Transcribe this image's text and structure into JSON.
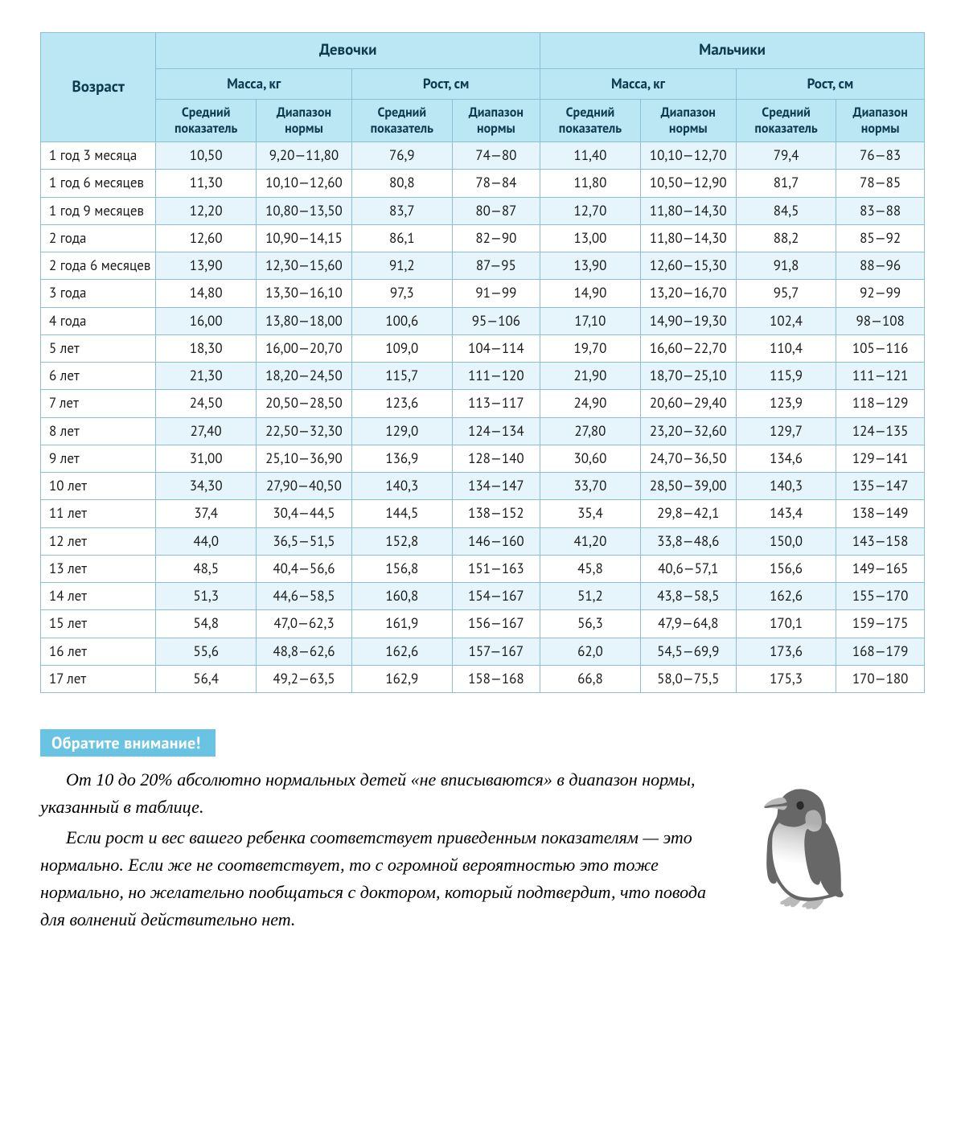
{
  "table": {
    "header": {
      "age": "Возраст",
      "girls": "Девочки",
      "boys": "Мальчики",
      "mass": "Масса, кг",
      "height": "Рост, см",
      "mean": "Средний показатель",
      "range": "Диапазон нормы"
    },
    "rows": [
      {
        "age": "1 год 3 месяца",
        "g_ma": "10,50",
        "g_mr": "9,20—11,80",
        "g_ha": "76,9",
        "g_hr": "74—80",
        "b_ma": "11,40",
        "b_mr": "10,10—12,70",
        "b_ha": "79,4",
        "b_hr": "76—83"
      },
      {
        "age": "1 год 6 месяцев",
        "g_ma": "11,30",
        "g_mr": "10,10—12,60",
        "g_ha": "80,8",
        "g_hr": "78—84",
        "b_ma": "11,80",
        "b_mr": "10,50—12,90",
        "b_ha": "81,7",
        "b_hr": "78—85"
      },
      {
        "age": "1 год 9 месяцев",
        "g_ma": "12,20",
        "g_mr": "10,80—13,50",
        "g_ha": "83,7",
        "g_hr": "80—87",
        "b_ma": "12,70",
        "b_mr": "11,80—14,30",
        "b_ha": "84,5",
        "b_hr": "83—88"
      },
      {
        "age": "2 года",
        "g_ma": "12,60",
        "g_mr": "10,90—14,15",
        "g_ha": "86,1",
        "g_hr": "82—90",
        "b_ma": "13,00",
        "b_mr": "11,80—14,30",
        "b_ha": "88,2",
        "b_hr": "85—92"
      },
      {
        "age": "2 года 6 месяцев",
        "g_ma": "13,90",
        "g_mr": "12,30—15,60",
        "g_ha": "91,2",
        "g_hr": "87—95",
        "b_ma": "13,90",
        "b_mr": "12,60—15,30",
        "b_ha": "91,8",
        "b_hr": "88—96"
      },
      {
        "age": "3 года",
        "g_ma": "14,80",
        "g_mr": "13,30—16,10",
        "g_ha": "97,3",
        "g_hr": "91—99",
        "b_ma": "14,90",
        "b_mr": "13,20—16,70",
        "b_ha": "95,7",
        "b_hr": "92—99"
      },
      {
        "age": "4 года",
        "g_ma": "16,00",
        "g_mr": "13,80—18,00",
        "g_ha": "100,6",
        "g_hr": "95—106",
        "b_ma": "17,10",
        "b_mr": "14,90—19,30",
        "b_ha": "102,4",
        "b_hr": "98—108"
      },
      {
        "age": "5 лет",
        "g_ma": "18,30",
        "g_mr": "16,00—20,70",
        "g_ha": "109,0",
        "g_hr": "104—114",
        "b_ma": "19,70",
        "b_mr": "16,60—22,70",
        "b_ha": "110,4",
        "b_hr": "105—116"
      },
      {
        "age": "6 лет",
        "g_ma": "21,30",
        "g_mr": "18,20—24,50",
        "g_ha": "115,7",
        "g_hr": "111—120",
        "b_ma": "21,90",
        "b_mr": "18,70—25,10",
        "b_ha": "115,9",
        "b_hr": "111—121"
      },
      {
        "age": "7 лет",
        "g_ma": "24,50",
        "g_mr": "20,50—28,50",
        "g_ha": "123,6",
        "g_hr": "113—117",
        "b_ma": "24,90",
        "b_mr": "20,60—29,40",
        "b_ha": "123,9",
        "b_hr": "118—129"
      },
      {
        "age": "8 лет",
        "g_ma": "27,40",
        "g_mr": "22,50—32,30",
        "g_ha": "129,0",
        "g_hr": "124—134",
        "b_ma": "27,80",
        "b_mr": "23,20—32,60",
        "b_ha": "129,7",
        "b_hr": "124—135"
      },
      {
        "age": "9 лет",
        "g_ma": "31,00",
        "g_mr": "25,10—36,90",
        "g_ha": "136,9",
        "g_hr": "128—140",
        "b_ma": "30,60",
        "b_mr": "24,70—36,50",
        "b_ha": "134,6",
        "b_hr": "129—141"
      },
      {
        "age": "10 лет",
        "g_ma": "34,30",
        "g_mr": "27,90—40,50",
        "g_ha": "140,3",
        "g_hr": "134—147",
        "b_ma": "33,70",
        "b_mr": "28,50—39,00",
        "b_ha": "140,3",
        "b_hr": "135—147"
      },
      {
        "age": "11 лет",
        "g_ma": "37,4",
        "g_mr": "30,4—44,5",
        "g_ha": "144,5",
        "g_hr": "138—152",
        "b_ma": "35,4",
        "b_mr": "29,8—42,1",
        "b_ha": "143,4",
        "b_hr": "138—149"
      },
      {
        "age": "12 лет",
        "g_ma": "44,0",
        "g_mr": "36,5—51,5",
        "g_ha": "152,8",
        "g_hr": "146—160",
        "b_ma": "41,20",
        "b_mr": "33,8—48,6",
        "b_ha": "150,0",
        "b_hr": "143—158"
      },
      {
        "age": "13 лет",
        "g_ma": "48,5",
        "g_mr": "40,4—56,6",
        "g_ha": "156,8",
        "g_hr": "151—163",
        "b_ma": "45,8",
        "b_mr": "40,6—57,1",
        "b_ha": "156,6",
        "b_hr": "149—165"
      },
      {
        "age": "14 лет",
        "g_ma": "51,3",
        "g_mr": "44,6—58,5",
        "g_ha": "160,8",
        "g_hr": "154—167",
        "b_ma": "51,2",
        "b_mr": "43,8—58,5",
        "b_ha": "162,6",
        "b_hr": "155—170"
      },
      {
        "age": "15 лет",
        "g_ma": "54,8",
        "g_mr": "47,0—62,3",
        "g_ha": "161,9",
        "g_hr": "156—167",
        "b_ma": "56,3",
        "b_mr": "47,9—64,8",
        "b_ha": "170,1",
        "b_hr": "159—175"
      },
      {
        "age": "16 лет",
        "g_ma": "55,6",
        "g_mr": "48,8—62,6",
        "g_ha": "162,6",
        "g_hr": "157—167",
        "b_ma": "62,0",
        "b_mr": "54,5—69,9",
        "b_ha": "173,6",
        "b_hr": "168—179"
      },
      {
        "age": "17 лет",
        "g_ma": "56,4",
        "g_mr": "49,2—63,5",
        "g_ha": "162,9",
        "g_hr": "158—168",
        "b_ma": "66,8",
        "b_mr": "58,0—75,5",
        "b_ha": "175,3",
        "b_hr": "170—180"
      }
    ]
  },
  "note": {
    "title": "Обратите внимание!",
    "p1": "От 10 до 20% абсолютно нормальных детей «не вписываются» в диапазон нормы, указанный в таблице.",
    "p2": "Если рост и вес вашего ребенка соответствует приведенным показателям — это нормально. Если же не соответствует, то с огромной вероятностью это тоже нормально, но желательно пообщаться с доктором, который подтвердит, что повода для волнений действительно нет."
  },
  "style": {
    "header_bg": "#bbe6f4",
    "border": "#8abfd6",
    "stripe": "#e6f5fb",
    "note_bg": "#69c4e3"
  }
}
